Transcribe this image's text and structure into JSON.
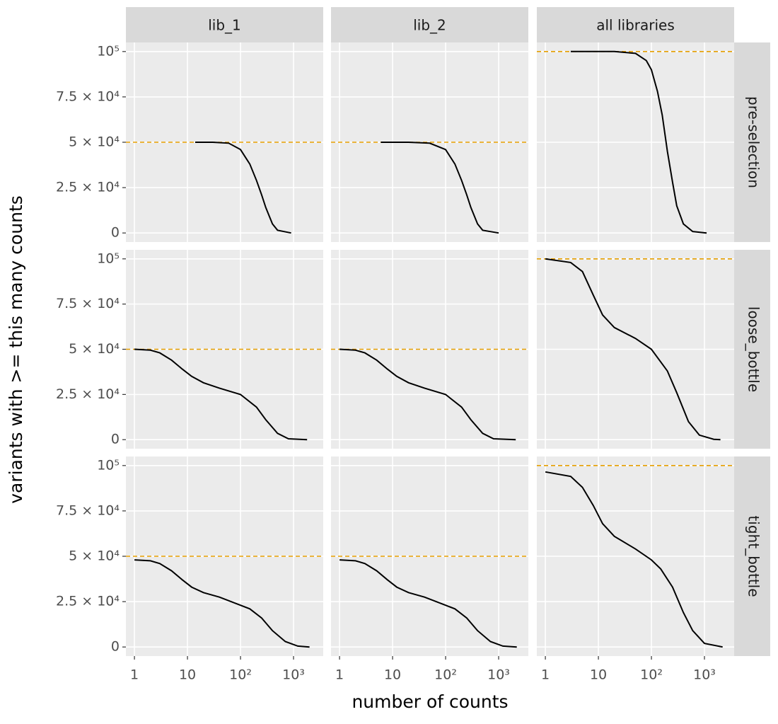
{
  "chart_data": {
    "type": "line",
    "x_label": "number of counts",
    "y_label": "variants with >= this many counts",
    "columns": [
      "lib_1",
      "lib_2",
      "all libraries"
    ],
    "rows": [
      "pre-selection",
      "loose_bottle",
      "tight_bottle"
    ],
    "log_x": true,
    "grid": true,
    "xlim": [
      0.69,
      3630
    ],
    "ylim": [
      -5000,
      105000
    ],
    "xticks": [
      1,
      10,
      {
        "value": 100,
        "label": "10²"
      },
      {
        "value": 1000,
        "label": "10³"
      }
    ],
    "yticks": [
      0,
      {
        "value": 25000,
        "label": "2.5 × 10⁴"
      },
      {
        "value": 50000,
        "label": "5 × 10⁴"
      },
      {
        "value": 75000,
        "label": "7.5 × 10⁴"
      },
      {
        "value": 100000,
        "label": "10⁵"
      }
    ],
    "line_color": "#000000",
    "hline_color": "#e69f00",
    "panels": [
      [
        {
          "hline": 50000,
          "x": [
            14,
            30,
            60,
            100,
            150,
            200,
            250,
            300,
            400,
            500,
            900
          ],
          "y": [
            50000,
            50000,
            49500,
            46000,
            38000,
            29000,
            21000,
            14000,
            5000,
            1500,
            0
          ]
        },
        {
          "hline": 50000,
          "x": [
            6,
            20,
            50,
            100,
            150,
            200,
            250,
            300,
            400,
            500,
            1000
          ],
          "y": [
            50000,
            50000,
            49500,
            46000,
            38000,
            29000,
            21000,
            14000,
            5000,
            1500,
            0
          ]
        },
        {
          "hline": 100000,
          "x": [
            3,
            20,
            50,
            80,
            100,
            130,
            160,
            200,
            250,
            300,
            400,
            600,
            1100
          ],
          "y": [
            100000,
            100000,
            99000,
            95000,
            90000,
            78000,
            65000,
            45000,
            28000,
            15000,
            5000,
            800,
            0
          ]
        }
      ],
      [
        {
          "hline": 50000,
          "x": [
            1,
            2,
            3,
            5,
            8,
            12,
            20,
            40,
            100,
            200,
            300,
            500,
            800,
            1800
          ],
          "y": [
            50000,
            49500,
            48000,
            44000,
            39000,
            35000,
            31500,
            28500,
            25000,
            18000,
            11000,
            3500,
            500,
            0
          ]
        },
        {
          "hline": 50000,
          "x": [
            1,
            2,
            3,
            5,
            8,
            12,
            20,
            40,
            100,
            200,
            300,
            500,
            800,
            2100
          ],
          "y": [
            50000,
            49500,
            48000,
            44000,
            39000,
            35000,
            31500,
            28500,
            25000,
            18000,
            11000,
            3500,
            500,
            0
          ]
        },
        {
          "hline": 100000,
          "x": [
            1,
            3,
            5,
            8,
            12,
            20,
            50,
            100,
            200,
            300,
            500,
            800,
            1500,
            2000
          ],
          "y": [
            100000,
            98000,
            93000,
            80000,
            69000,
            62000,
            56000,
            50000,
            38000,
            26000,
            10000,
            2500,
            200,
            0
          ]
        }
      ],
      [
        {
          "hline": 50000,
          "x": [
            1,
            2,
            3,
            5,
            8,
            12,
            20,
            40,
            100,
            150,
            250,
            400,
            700,
            1200,
            2000
          ],
          "y": [
            48000,
            47500,
            46000,
            42000,
            37000,
            33000,
            30000,
            27500,
            23000,
            21000,
            16000,
            9000,
            3000,
            500,
            0
          ]
        },
        {
          "hline": 50000,
          "x": [
            1,
            2,
            3,
            5,
            8,
            12,
            20,
            40,
            100,
            150,
            250,
            400,
            700,
            1200,
            2200
          ],
          "y": [
            48000,
            47500,
            46000,
            42000,
            37000,
            33000,
            30000,
            27500,
            23000,
            21000,
            16000,
            9000,
            3000,
            500,
            0
          ]
        },
        {
          "hline": 100000,
          "x": [
            1,
            3,
            5,
            8,
            12,
            20,
            50,
            100,
            150,
            250,
            400,
            600,
            1000,
            2200
          ],
          "y": [
            96500,
            94000,
            88000,
            78000,
            68000,
            61000,
            54000,
            48000,
            43000,
            33000,
            19000,
            9000,
            2000,
            0
          ]
        }
      ]
    ]
  }
}
